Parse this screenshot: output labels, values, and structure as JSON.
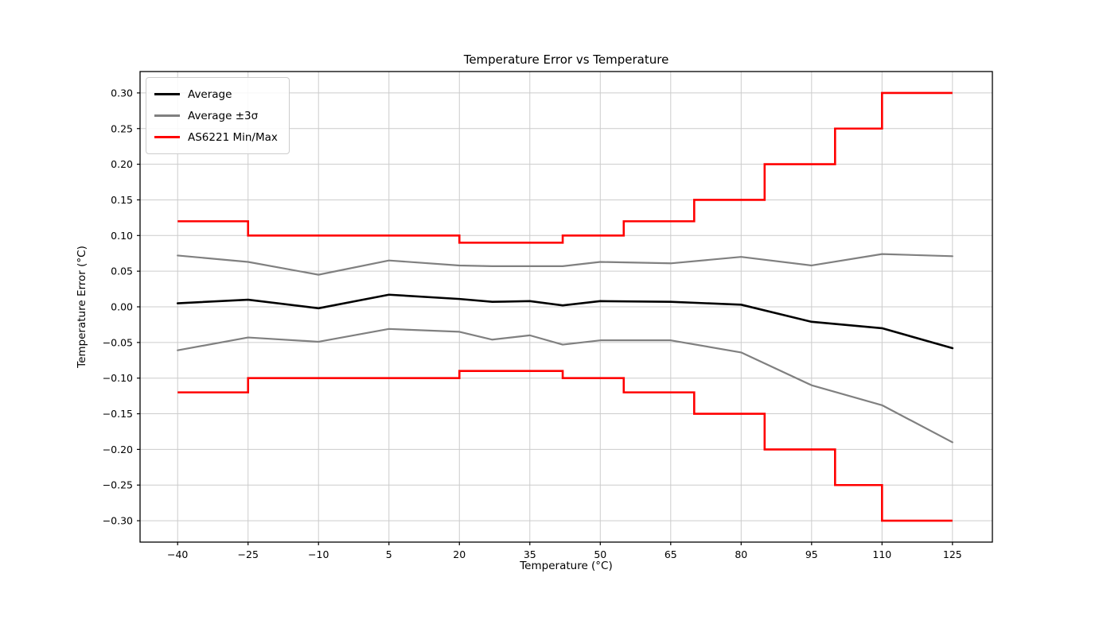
{
  "chart_data": {
    "type": "line",
    "title": "Temperature Error vs Temperature",
    "xlabel": "Temperature (°C)",
    "ylabel": "Temperature Error  (°C)",
    "xlim": [
      -48,
      133.5
    ],
    "ylim": [
      -0.33,
      0.33
    ],
    "xticks": [
      -40,
      -25,
      -10,
      5,
      20,
      35,
      50,
      65,
      80,
      95,
      110,
      125
    ],
    "yticks": [
      -0.3,
      -0.25,
      -0.2,
      -0.15,
      -0.1,
      -0.05,
      0.0,
      0.05,
      0.1,
      0.15,
      0.2,
      0.25,
      0.3
    ],
    "grid": true,
    "grid_color": "#cccccc",
    "axis_color": "#000000",
    "legend_position": "upper left",
    "legend": [
      {
        "label": "Average",
        "color": "#000000"
      },
      {
        "label": "Average ±3σ",
        "color": "#808080"
      },
      {
        "label": "AS6221 Min/Max",
        "color": "#ff0000"
      }
    ],
    "x": [
      -40,
      -25,
      -10,
      5,
      20,
      27,
      35,
      42,
      50,
      65,
      80,
      95,
      110,
      125
    ],
    "series": [
      {
        "id": "average",
        "name": "Average",
        "color": "#000000",
        "width": 2.6,
        "y": [
          0.005,
          0.01,
          -0.002,
          0.017,
          0.011,
          0.007,
          0.008,
          0.002,
          0.008,
          0.007,
          0.003,
          -0.021,
          -0.03,
          -0.058
        ]
      },
      {
        "id": "average-plus-3sigma",
        "name": "Average +3σ",
        "color": "#808080",
        "width": 2.2,
        "y": [
          0.072,
          0.063,
          0.045,
          0.065,
          0.058,
          0.057,
          0.057,
          0.057,
          0.063,
          0.061,
          0.07,
          0.058,
          0.074,
          0.071
        ]
      },
      {
        "id": "average-minus-3sigma",
        "name": "Average −3σ",
        "color": "#808080",
        "width": 2.2,
        "y": [
          -0.061,
          -0.043,
          -0.049,
          -0.031,
          -0.035,
          -0.046,
          -0.04,
          -0.053,
          -0.047,
          -0.047,
          -0.064,
          -0.11,
          -0.138,
          -0.19
        ]
      }
    ],
    "step_series": [
      {
        "id": "as6221-max",
        "name": "AS6221 Max",
        "color": "#ff0000",
        "width": 2.6,
        "edges": [
          -40,
          -25,
          20,
          42,
          55,
          70,
          85,
          100,
          110,
          125
        ],
        "values": [
          0.12,
          0.1,
          0.09,
          0.1,
          0.12,
          0.15,
          0.2,
          0.25,
          0.3
        ]
      },
      {
        "id": "as6221-min",
        "name": "AS6221 Min",
        "color": "#ff0000",
        "width": 2.6,
        "edges": [
          -40,
          -25,
          20,
          42,
          55,
          70,
          85,
          100,
          110,
          125
        ],
        "values": [
          -0.12,
          -0.1,
          -0.09,
          -0.1,
          -0.12,
          -0.15,
          -0.2,
          -0.25,
          -0.3
        ]
      }
    ]
  }
}
